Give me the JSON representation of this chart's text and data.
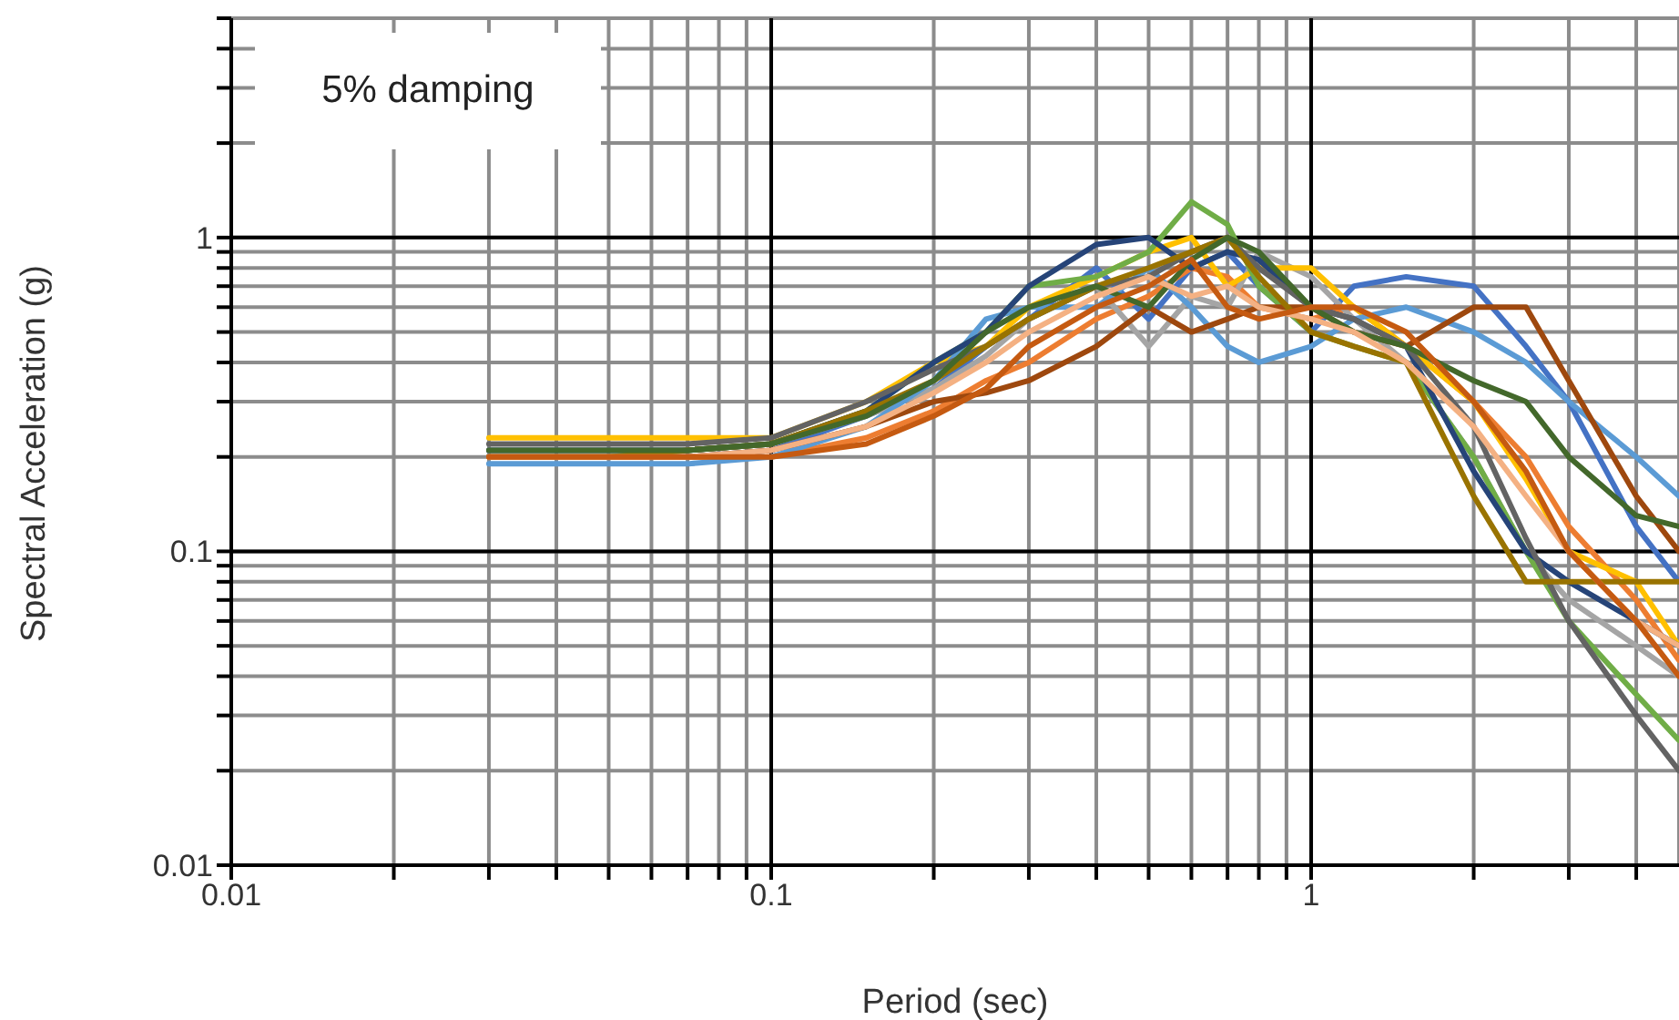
{
  "chart_data": {
    "type": "line",
    "xlabel": "Period (sec)",
    "ylabel": "Spectral Acceleration (g)",
    "annotations": [
      "5% damping"
    ],
    "log": "xy",
    "grid": true,
    "legend": false,
    "xlim": [
      0.01,
      4.8
    ],
    "ylim": [
      0.01,
      5
    ],
    "xticks": [
      0.01,
      {
        "value": 0.02,
        "label": null
      },
      {
        "value": 0.03,
        "label": null
      },
      {
        "value": 0.04,
        "label": null
      },
      {
        "value": 0.05,
        "label": null
      },
      {
        "value": 0.06,
        "label": null
      },
      {
        "value": 0.07,
        "label": null
      },
      {
        "value": 0.08,
        "label": null
      },
      {
        "value": 0.09,
        "label": null
      },
      0.1,
      {
        "value": 0.2,
        "label": null
      },
      {
        "value": 0.3,
        "label": null
      },
      {
        "value": 0.4,
        "label": null
      },
      {
        "value": 0.5,
        "label": null
      },
      {
        "value": 0.6,
        "label": null
      },
      {
        "value": 0.7,
        "label": null
      },
      {
        "value": 0.8,
        "label": null
      },
      {
        "value": 0.9,
        "label": null
      },
      1,
      {
        "value": 2,
        "label": null
      },
      {
        "value": 3,
        "label": null
      },
      {
        "value": 4,
        "label": null
      }
    ],
    "yticks": [
      0.01,
      {
        "value": 0.02,
        "label": null
      },
      {
        "value": 0.03,
        "label": null
      },
      {
        "value": 0.04,
        "label": null
      },
      {
        "value": 0.05,
        "label": null
      },
      {
        "value": 0.06,
        "label": null
      },
      {
        "value": 0.07,
        "label": null
      },
      {
        "value": 0.08,
        "label": null
      },
      {
        "value": 0.09,
        "label": null
      },
      0.1,
      {
        "value": 0.2,
        "label": null
      },
      {
        "value": 0.3,
        "label": null
      },
      {
        "value": 0.4,
        "label": null
      },
      {
        "value": 0.5,
        "label": null
      },
      {
        "value": 0.6,
        "label": null
      },
      {
        "value": 0.7,
        "label": null
      },
      {
        "value": 0.8,
        "label": null
      },
      {
        "value": 0.9,
        "label": null
      },
      1,
      {
        "value": 2,
        "label": null
      },
      {
        "value": 3,
        "label": null
      },
      {
        "value": 4,
        "label": null
      },
      {
        "value": 5,
        "label": null
      }
    ],
    "x": [
      0.03,
      0.05,
      0.07,
      0.1,
      0.15,
      0.2,
      0.25,
      0.3,
      0.4,
      0.5,
      0.6,
      0.7,
      0.8,
      1,
      1.2,
      1.5,
      2,
      2.5,
      3,
      4,
      4.8
    ],
    "series": [
      {
        "color": "#4472c4",
        "values": [
          0.2,
          0.2,
          0.2,
          0.21,
          0.27,
          0.33,
          0.45,
          0.55,
          0.8,
          0.55,
          0.8,
          0.9,
          0.7,
          0.5,
          0.7,
          0.75,
          0.7,
          0.45,
          0.3,
          0.12,
          0.08
        ]
      },
      {
        "color": "#ed7d31",
        "values": [
          0.2,
          0.2,
          0.2,
          0.2,
          0.23,
          0.28,
          0.35,
          0.4,
          0.55,
          0.65,
          0.8,
          0.75,
          0.6,
          0.55,
          0.6,
          0.45,
          0.3,
          0.2,
          0.12,
          0.07,
          0.045
        ]
      },
      {
        "color": "#a5a5a5",
        "values": [
          0.21,
          0.21,
          0.21,
          0.22,
          0.27,
          0.33,
          0.42,
          0.55,
          0.7,
          0.45,
          0.65,
          0.6,
          0.9,
          0.75,
          0.55,
          0.4,
          0.2,
          0.1,
          0.07,
          0.05,
          0.04
        ]
      },
      {
        "color": "#ffc000",
        "values": [
          0.23,
          0.23,
          0.23,
          0.23,
          0.3,
          0.4,
          0.45,
          0.6,
          0.75,
          0.9,
          1.0,
          0.7,
          0.8,
          0.8,
          0.6,
          0.45,
          0.3,
          0.17,
          0.1,
          0.08,
          0.05
        ]
      },
      {
        "color": "#5b9bd5",
        "values": [
          0.19,
          0.19,
          0.19,
          0.2,
          0.25,
          0.35,
          0.55,
          0.6,
          0.6,
          0.8,
          0.6,
          0.45,
          0.4,
          0.45,
          0.55,
          0.6,
          0.5,
          0.4,
          0.3,
          0.2,
          0.15
        ]
      },
      {
        "color": "#70ad47",
        "values": [
          0.2,
          0.2,
          0.21,
          0.22,
          0.28,
          0.4,
          0.5,
          0.7,
          0.75,
          0.9,
          1.3,
          1.1,
          0.7,
          0.5,
          0.45,
          0.4,
          0.2,
          0.1,
          0.06,
          0.035,
          0.025
        ]
      },
      {
        "color": "#264478",
        "values": [
          0.21,
          0.21,
          0.21,
          0.22,
          0.28,
          0.4,
          0.5,
          0.7,
          0.95,
          1.0,
          0.8,
          0.9,
          0.85,
          0.6,
          0.55,
          0.45,
          0.18,
          0.1,
          0.08,
          0.06,
          0.05
        ]
      },
      {
        "color": "#9e480e",
        "values": [
          0.2,
          0.2,
          0.2,
          0.21,
          0.25,
          0.3,
          0.32,
          0.35,
          0.45,
          0.6,
          0.5,
          0.55,
          0.6,
          0.6,
          0.5,
          0.45,
          0.6,
          0.6,
          0.35,
          0.15,
          0.1
        ]
      },
      {
        "color": "#636363",
        "values": [
          0.22,
          0.22,
          0.22,
          0.23,
          0.3,
          0.38,
          0.45,
          0.55,
          0.7,
          0.75,
          0.9,
          1.0,
          0.8,
          0.6,
          0.55,
          0.45,
          0.25,
          0.11,
          0.06,
          0.03,
          0.02
        ]
      },
      {
        "color": "#997300",
        "values": [
          0.2,
          0.2,
          0.21,
          0.22,
          0.28,
          0.35,
          0.45,
          0.55,
          0.7,
          0.8,
          0.9,
          1.0,
          0.75,
          0.5,
          0.45,
          0.4,
          0.15,
          0.08,
          0.08,
          0.08,
          0.08
        ]
      },
      {
        "color": "#43682b",
        "values": [
          0.21,
          0.21,
          0.21,
          0.22,
          0.27,
          0.35,
          0.5,
          0.6,
          0.7,
          0.6,
          0.85,
          1.0,
          0.9,
          0.6,
          0.5,
          0.45,
          0.35,
          0.3,
          0.2,
          0.13,
          0.12
        ]
      },
      {
        "color": "#f4b183",
        "values": [
          0.2,
          0.2,
          0.2,
          0.21,
          0.25,
          0.32,
          0.4,
          0.5,
          0.65,
          0.75,
          0.65,
          0.7,
          0.6,
          0.55,
          0.5,
          0.4,
          0.25,
          0.15,
          0.1,
          0.06,
          0.05
        ]
      },
      {
        "color": "#c55a11",
        "values": [
          0.2,
          0.2,
          0.2,
          0.2,
          0.22,
          0.27,
          0.33,
          0.45,
          0.6,
          0.7,
          0.85,
          0.6,
          0.55,
          0.6,
          0.6,
          0.5,
          0.3,
          0.18,
          0.1,
          0.06,
          0.04
        ]
      }
    ]
  }
}
